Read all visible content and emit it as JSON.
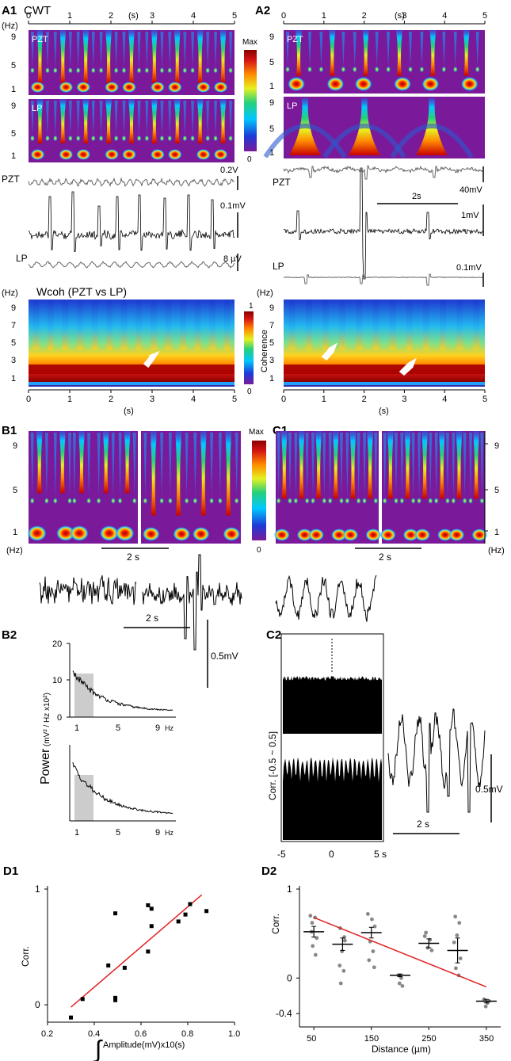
{
  "panels": {
    "A1": "A1",
    "A2": "A2",
    "B1": "B1",
    "B2": "B2",
    "C1": "C1",
    "C2": "C2",
    "D1": "D1",
    "D2": "D2"
  },
  "labels": {
    "cwt": "CWT",
    "hz": "(Hz)",
    "s": "(s)",
    "pzt": "PZT",
    "lp": "LP",
    "max": "Max",
    "zero": "0",
    "wcoh_title": "Wcoh (PZT vs LP)",
    "coherence": "Coherence",
    "one": "1",
    "two_s": "2 s",
    "two_s_tight": "2s",
    "hz_unit": "Hz"
  },
  "scales": {
    "a1_pzt": "0.2V",
    "a1_trace": "0.1mV",
    "a1_lp": "8 µV",
    "a2_pzt": "40mV",
    "a2_trace": "1mV",
    "a2_lp": "0.1mV",
    "b_trace": "0.5mV",
    "c_trace": "0.5mV"
  },
  "time_ticks": [
    "0",
    "1",
    "2",
    "3",
    "4",
    "5"
  ],
  "freq_ticks": [
    "9",
    "5",
    "1"
  ],
  "freq_ticks_full": [
    "9",
    "7",
    "5",
    "3",
    "1"
  ],
  "colorbar": {
    "stops": [
      "#7a1a9a",
      "#1d3ad8",
      "#00c8ff",
      "#26d07a",
      "#e6f020",
      "#ff8a00",
      "#d41414",
      "#8a0000"
    ]
  },
  "b2": {
    "yaxis_title": "Power",
    "yaxis_unit": "(mV² / Hz x10²)",
    "yticks": [
      "20",
      "10",
      "0"
    ],
    "xticks": [
      "1",
      "5",
      "9"
    ]
  },
  "c2": {
    "yaxis_title": "Corr. [-0.5 ~ 0.5]",
    "xticks": [
      "-5",
      "0",
      "5 s"
    ]
  },
  "chart_data": [
    {
      "id": "D1",
      "type": "scatter",
      "title": "",
      "xlabel": "Amplitude(mV)x10(s)",
      "ylabel": "Corr.",
      "xlim": [
        0.2,
        1.0
      ],
      "ylim": [
        -0.15,
        1.0
      ],
      "xticks": [
        "0.2",
        "0.4",
        "0.6",
        "0.8",
        "1.0"
      ],
      "yticks": [
        "1",
        "0"
      ],
      "points": [
        {
          "x": 0.3,
          "y": -0.11
        },
        {
          "x": 0.35,
          "y": 0.05
        },
        {
          "x": 0.46,
          "y": 0.34
        },
        {
          "x": 0.49,
          "y": 0.04
        },
        {
          "x": 0.49,
          "y": 0.06
        },
        {
          "x": 0.49,
          "y": 0.79
        },
        {
          "x": 0.53,
          "y": 0.32
        },
        {
          "x": 0.63,
          "y": 0.46
        },
        {
          "x": 0.63,
          "y": 0.86
        },
        {
          "x": 0.645,
          "y": 0.83
        },
        {
          "x": 0.645,
          "y": 0.68
        },
        {
          "x": 0.76,
          "y": 0.72
        },
        {
          "x": 0.79,
          "y": 0.78
        },
        {
          "x": 0.81,
          "y": 0.87
        },
        {
          "x": 0.88,
          "y": 0.81
        }
      ],
      "fit": {
        "x": [
          0.3,
          0.86
        ],
        "y": [
          -0.02,
          0.95
        ],
        "color": "#e02020"
      }
    },
    {
      "id": "D2",
      "type": "scatter",
      "title": "",
      "xlabel": "Distance (µm)",
      "ylabel": "Corr.",
      "xlim": [
        25,
        375
      ],
      "ylim": [
        -0.55,
        1.0
      ],
      "xticks": [
        "50",
        "150",
        "250",
        "350"
      ],
      "xtick_values": [
        50,
        150,
        250,
        350
      ],
      "yticks": [
        "1",
        "0",
        "-0.4"
      ],
      "ytick_values": [
        1,
        0,
        -0.4
      ],
      "means": [
        {
          "x": 50,
          "y": 0.52,
          "err": 0.06
        },
        {
          "x": 100,
          "y": 0.38,
          "err": 0.07
        },
        {
          "x": 150,
          "y": 0.51,
          "err": 0.06
        },
        {
          "x": 200,
          "y": 0.03,
          "err": 0.015
        },
        {
          "x": 250,
          "y": 0.39,
          "err": 0.05
        },
        {
          "x": 300,
          "y": 0.31,
          "err": 0.14
        },
        {
          "x": 350,
          "y": -0.26,
          "err": 0.02
        }
      ],
      "points": [
        {
          "x": 44,
          "y": 0.7
        },
        {
          "x": 47,
          "y": 0.62
        },
        {
          "x": 52,
          "y": 0.68
        },
        {
          "x": 55,
          "y": 0.45
        },
        {
          "x": 48,
          "y": 0.36
        },
        {
          "x": 53,
          "y": 0.26
        },
        {
          "x": 46,
          "y": 0.52
        },
        {
          "x": 96,
          "y": 0.56
        },
        {
          "x": 103,
          "y": 0.46
        },
        {
          "x": 99,
          "y": 0.3
        },
        {
          "x": 95,
          "y": 0.14
        },
        {
          "x": 102,
          "y": 0.08
        },
        {
          "x": 97,
          "y": -0.06
        },
        {
          "x": 104,
          "y": 0.42
        },
        {
          "x": 144,
          "y": 0.72
        },
        {
          "x": 151,
          "y": 0.66
        },
        {
          "x": 156,
          "y": 0.58
        },
        {
          "x": 148,
          "y": 0.41
        },
        {
          "x": 153,
          "y": 0.3
        },
        {
          "x": 146,
          "y": 0.2
        },
        {
          "x": 155,
          "y": 0.12
        },
        {
          "x": 197,
          "y": 0.03
        },
        {
          "x": 202,
          "y": 0.0
        },
        {
          "x": 199,
          "y": -0.06
        },
        {
          "x": 204,
          "y": -0.09
        },
        {
          "x": 245,
          "y": 0.51
        },
        {
          "x": 252,
          "y": 0.43
        },
        {
          "x": 248,
          "y": 0.34
        },
        {
          "x": 255,
          "y": 0.31
        },
        {
          "x": 243,
          "y": 0.47
        },
        {
          "x": 296,
          "y": 0.69
        },
        {
          "x": 303,
          "y": 0.62
        },
        {
          "x": 299,
          "y": 0.48
        },
        {
          "x": 305,
          "y": 0.22
        },
        {
          "x": 297,
          "y": 0.11
        },
        {
          "x": 302,
          "y": 0.03
        },
        {
          "x": 294,
          "y": 0.4
        },
        {
          "x": 346,
          "y": -0.24
        },
        {
          "x": 352,
          "y": -0.28
        },
        {
          "x": 349,
          "y": -0.32
        },
        {
          "x": 355,
          "y": -0.26
        }
      ],
      "fit": {
        "x": [
          50,
          350
        ],
        "y": [
          0.68,
          -0.1
        ],
        "color": "#e02020"
      }
    }
  ]
}
